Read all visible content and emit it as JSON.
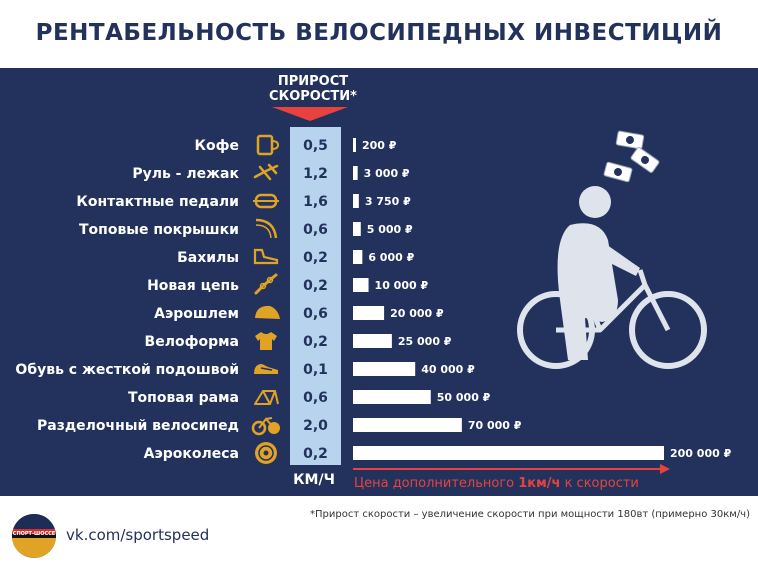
{
  "title": "РЕНТАБЕЛЬНОСТЬ ВЕЛОСИПЕДНЫХ ИНВЕСТИЦИЙ",
  "header": {
    "line1": "ПРИРОСТ",
    "line2": "СКОРОСТИ*"
  },
  "unit_label": "КМ/Ч",
  "caption": {
    "prefix": "Цена дополнительного ",
    "bold": "1км/ч",
    "suffix": " к скорости"
  },
  "footnote": "*Прирост скорости – увеличение скорости при мощности 180вт (примерно 30км/ч)",
  "footer_link": "vk.com/sportspeed",
  "logo_text": "СПОРТ-ШОССЕ",
  "colors": {
    "panel": "#22325c",
    "title": "#22325c",
    "speed_column": "#b7d3ee",
    "bars": "#ffffff",
    "icons": "#e0a325",
    "caption": "#e8423f",
    "cyclist": "#dfe4ec"
  },
  "chart_data": {
    "type": "bar",
    "orientation": "horizontal",
    "categories": [
      "Кофе",
      "Руль - лежак",
      "Контактные педали",
      "Топовые покрышки",
      "Бахилы",
      "Новая цепь",
      "Аэрошлем",
      "Велоформа",
      "Обувь с жесткой подошвой",
      "Топовая рама",
      "Разделочный велосипед",
      "Аэроколеса"
    ],
    "icons": [
      "coffee-cup-icon",
      "aero-bars-icon",
      "pedal-icon",
      "tire-icon",
      "shoe-cover-icon",
      "chain-icon",
      "aero-helmet-icon",
      "jersey-icon",
      "cycling-shoe-icon",
      "frame-icon",
      "tt-bike-icon",
      "disc-wheel-icon"
    ],
    "speed_gain": [
      "0,5",
      "1,2",
      "1,6",
      "0,6",
      "0,2",
      "0,2",
      "0,6",
      "0,2",
      "0,1",
      "0,6",
      "2,0",
      "0,2"
    ],
    "values": [
      200,
      3000,
      3750,
      5000,
      6000,
      10000,
      20000,
      25000,
      40000,
      50000,
      70000,
      200000
    ],
    "value_labels": [
      "200 ₽",
      "3 000 ₽",
      "3 750 ₽",
      "5 000 ₽",
      "6 000 ₽",
      "10 000 ₽",
      "20 000 ₽",
      "25 000 ₽",
      "40 000 ₽",
      "50 000 ₽",
      "70 000 ₽",
      "200 000 ₽"
    ],
    "xlim": [
      0,
      200000
    ],
    "axis_arrow": true
  }
}
